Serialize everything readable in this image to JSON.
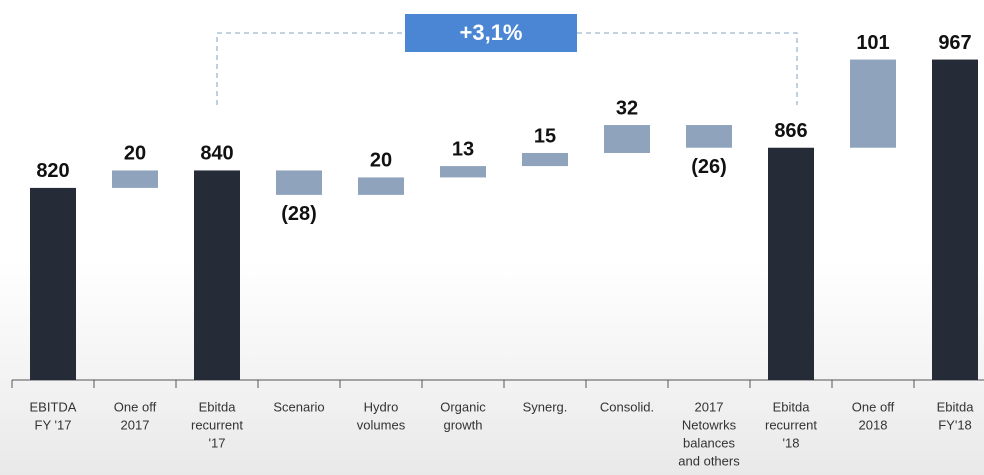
{
  "chart_data": {
    "type": "waterfall",
    "annotation": "+3,1%",
    "categories": [
      [
        "EBITDA",
        "FY '17"
      ],
      [
        "One off",
        "2017"
      ],
      [
        "Ebitda",
        "recurrent",
        "'17"
      ],
      [
        "Scenario"
      ],
      [
        "Hydro",
        "volumes"
      ],
      [
        "Organic",
        "growth"
      ],
      [
        "Synerg."
      ],
      [
        "Consolid."
      ],
      [
        "2017",
        "Netowrks",
        "balances",
        "and others"
      ],
      [
        "Ebitda",
        "recurrent",
        "'18"
      ],
      [
        "One off",
        "2018"
      ],
      [
        "Ebitda",
        "FY'18"
      ]
    ],
    "values": [
      820,
      20,
      840,
      -28,
      20,
      13,
      15,
      32,
      -26,
      866,
      101,
      967
    ],
    "value_labels": [
      "820",
      "20",
      "840",
      "(28)",
      "20",
      "13",
      "15",
      "32",
      "(26)",
      "866",
      "101",
      "967"
    ],
    "colors": [
      "#252c38",
      "#8fa3bd",
      "#252c38",
      "#8fa3bd",
      "#8fa3bd",
      "#8fa3bd",
      "#8fa3bd",
      "#8fa3bd",
      "#8fa3bd",
      "#252c38",
      "#8fa3bd",
      "#252c38"
    ],
    "total_color": "#252c38",
    "ylim": [
      600,
      1010
    ]
  }
}
